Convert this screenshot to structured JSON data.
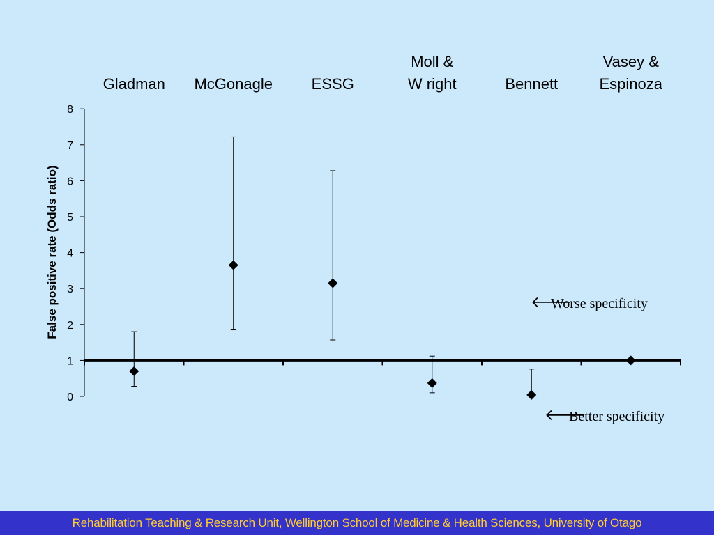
{
  "chart_data": {
    "type": "scatter",
    "categories": [
      [
        "Gladman"
      ],
      [
        "McGonagle"
      ],
      [
        "ESSG"
      ],
      [
        "Moll &",
        "W right"
      ],
      [
        "Bennett"
      ],
      [
        "Vasey &",
        "Espinoza"
      ]
    ],
    "points": [
      {
        "value": 0.7,
        "lower": 0.28,
        "upper": 1.8
      },
      {
        "value": 3.65,
        "lower": 1.85,
        "upper": 7.22
      },
      {
        "value": 3.15,
        "lower": 1.57,
        "upper": 6.28
      },
      {
        "value": 0.37,
        "lower": 0.1,
        "upper": 1.12
      },
      {
        "value": 0.04,
        "lower": null,
        "upper": 0.76
      },
      {
        "value": 1.0,
        "lower": null,
        "upper": null
      }
    ],
    "ylabel": "False positive rate (Odds ratio)",
    "xlabel": "",
    "ylim": [
      0,
      8
    ],
    "yticks": [
      "0",
      "1",
      "2",
      "3",
      "4",
      "5",
      "6",
      "7",
      "8"
    ],
    "reference_line": 1,
    "annotations": {
      "worse": {
        "arrow": "🡐",
        "text": "Worse specificity"
      },
      "better": {
        "arrow": "🡐",
        "text": "Better specificity"
      }
    },
    "grid": false,
    "legend": "none"
  },
  "footer": {
    "text": "Rehabilitation Teaching & Research Unit, Wellington School of Medicine & Health Sciences, University of Otago"
  },
  "colors": {
    "background": "#cce9fc",
    "footer_bg": "#3333cc",
    "footer_text": "#ffcc33"
  }
}
